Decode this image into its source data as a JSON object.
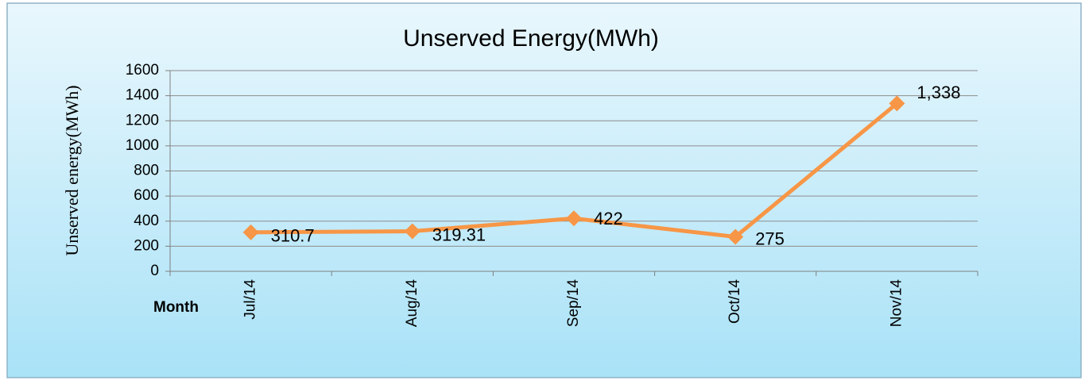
{
  "chart_data": {
    "type": "line",
    "title": "Unserved Energy(MWh)",
    "y_label": "Unserved energy(MWh)",
    "x_label": "Month",
    "categories": [
      "Jul/14",
      "Aug/14",
      "Sep/14",
      "Oct/14",
      "Nov/14"
    ],
    "series": [
      {
        "name": "Unserved energy(MWh)",
        "color": "#f79646",
        "values": [
          310.7,
          319.31,
          422,
          275,
          1338
        ],
        "value_labels": [
          "310.7",
          "319.31",
          "422",
          "275",
          "1,338"
        ]
      }
    ],
    "ylim": [
      0,
      1600
    ],
    "yticks": [
      0,
      200,
      400,
      600,
      800,
      1000,
      1200,
      1400,
      1600
    ],
    "grid": true
  }
}
